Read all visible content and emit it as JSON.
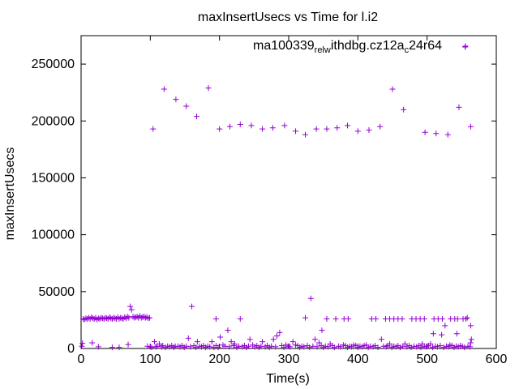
{
  "chart_data": {
    "type": "scatter",
    "title": "maxInsertUsecs vs Time for l.i2",
    "xlabel": "Time(s)",
    "ylabel": "maxInsertUsecs",
    "xlim": [
      0,
      600
    ],
    "ylim": [
      0,
      275000
    ],
    "xticks": [
      0,
      100,
      200,
      300,
      400,
      500,
      600
    ],
    "yticks": [
      0,
      50000,
      100000,
      150000,
      200000,
      250000
    ],
    "xtick_labels": [
      "0",
      "100",
      "200",
      "300",
      "400",
      "500",
      "600"
    ],
    "ytick_labels": [
      "0",
      "50000",
      "100000",
      "150000",
      "200000",
      "250000"
    ],
    "grid": false,
    "legend_position": "top-right",
    "marker": "plus",
    "series": [
      {
        "name": "ma100339",
        "name_parts": [
          {
            "text": "ma100339",
            "script": "normal"
          },
          {
            "text": "rel",
            "script": "sub"
          },
          {
            "text": "w",
            "script": "sub"
          },
          {
            "text": "ithdbg.cz12a",
            "script": "normal"
          },
          {
            "text": "c",
            "script": "sub"
          },
          {
            "text": "24r64",
            "script": "normal"
          }
        ],
        "color": "#9400d3",
        "points": [
          [
            1,
            2000
          ],
          [
            2,
            4500
          ],
          [
            3,
            26000
          ],
          [
            5,
            25500
          ],
          [
            7,
            26500
          ],
          [
            9,
            26000
          ],
          [
            11,
            27000
          ],
          [
            13,
            26000
          ],
          [
            15,
            27500
          ],
          [
            17,
            26500
          ],
          [
            19,
            26000
          ],
          [
            21,
            27000
          ],
          [
            23,
            25500
          ],
          [
            25,
            26500
          ],
          [
            27,
            26000
          ],
          [
            29,
            27000
          ],
          [
            31,
            26500
          ],
          [
            33,
            26000
          ],
          [
            35,
            27000
          ],
          [
            37,
            26500
          ],
          [
            39,
            26000
          ],
          [
            41,
            27500
          ],
          [
            43,
            26500
          ],
          [
            45,
            26000
          ],
          [
            47,
            27000
          ],
          [
            49,
            26500
          ],
          [
            51,
            26000
          ],
          [
            53,
            27500
          ],
          [
            55,
            26000
          ],
          [
            57,
            27000
          ],
          [
            59,
            26500
          ],
          [
            61,
            26000
          ],
          [
            63,
            27500
          ],
          [
            65,
            26500
          ],
          [
            67,
            28000
          ],
          [
            69,
            27000
          ],
          [
            71,
            37000
          ],
          [
            73,
            34000
          ],
          [
            75,
            28000
          ],
          [
            77,
            27000
          ],
          [
            79,
            27500
          ],
          [
            81,
            28000
          ],
          [
            83,
            27000
          ],
          [
            85,
            28500
          ],
          [
            87,
            27000
          ],
          [
            89,
            27500
          ],
          [
            91,
            28000
          ],
          [
            93,
            27000
          ],
          [
            95,
            27500
          ],
          [
            97,
            26500
          ],
          [
            99,
            27000
          ],
          [
            16,
            5000
          ],
          [
            25,
            1500
          ],
          [
            45,
            1000
          ],
          [
            55,
            1000
          ],
          [
            68,
            3500
          ],
          [
            104,
            193000
          ],
          [
            120,
            228000
          ],
          [
            137,
            219000
          ],
          [
            152,
            213000
          ],
          [
            167,
            204000
          ],
          [
            184,
            229000
          ],
          [
            200,
            193000
          ],
          [
            215,
            195000
          ],
          [
            230,
            197000
          ],
          [
            246,
            196000
          ],
          [
            262,
            193000
          ],
          [
            277,
            194000
          ],
          [
            294,
            196000
          ],
          [
            310,
            191000
          ],
          [
            324,
            188000
          ],
          [
            340,
            193000
          ],
          [
            355,
            193000
          ],
          [
            370,
            194000
          ],
          [
            385,
            196000
          ],
          [
            400,
            191000
          ],
          [
            416,
            192000
          ],
          [
            432,
            195000
          ],
          [
            450,
            228000
          ],
          [
            466,
            210000
          ],
          [
            497,
            190000
          ],
          [
            513,
            189000
          ],
          [
            530,
            188000
          ],
          [
            546,
            212000
          ],
          [
            555,
            265000
          ],
          [
            563,
            195000
          ],
          [
            195,
            26000
          ],
          [
            230,
            26000
          ],
          [
            324,
            27000
          ],
          [
            332,
            44000
          ],
          [
            348,
            16000
          ],
          [
            355,
            26000
          ],
          [
            368,
            26000
          ],
          [
            380,
            26000
          ],
          [
            386,
            26000
          ],
          [
            420,
            26000
          ],
          [
            426,
            26000
          ],
          [
            440,
            26000
          ],
          [
            446,
            26000
          ],
          [
            452,
            26000
          ],
          [
            458,
            26000
          ],
          [
            464,
            26000
          ],
          [
            478,
            26000
          ],
          [
            484,
            26000
          ],
          [
            490,
            26000
          ],
          [
            496,
            26000
          ],
          [
            510,
            26000
          ],
          [
            516,
            26000
          ],
          [
            522,
            26000
          ],
          [
            526,
            20000
          ],
          [
            534,
            26000
          ],
          [
            540,
            26000
          ],
          [
            544,
            26000
          ],
          [
            552,
            26000
          ],
          [
            556,
            26000
          ],
          [
            558,
            27000
          ],
          [
            521,
            12000
          ],
          [
            543,
            13000
          ],
          [
            563,
            20000
          ],
          [
            564,
            8000
          ],
          [
            563,
            5000
          ],
          [
            106,
            6000
          ],
          [
            113,
            4000
          ],
          [
            140,
            2000
          ],
          [
            155,
            9000
          ],
          [
            160,
            37000
          ],
          [
            168,
            6000
          ],
          [
            189,
            6000
          ],
          [
            201,
            10000
          ],
          [
            205,
            3000
          ],
          [
            212,
            16000
          ],
          [
            217,
            6000
          ],
          [
            222,
            4000
          ],
          [
            244,
            8000
          ],
          [
            248,
            3000
          ],
          [
            262,
            6000
          ],
          [
            278,
            8000
          ],
          [
            283,
            11000
          ],
          [
            287,
            14000
          ],
          [
            296,
            3000
          ],
          [
            306,
            6000
          ],
          [
            310,
            3000
          ],
          [
            338,
            8000
          ],
          [
            344,
            5000
          ],
          [
            360,
            4000
          ],
          [
            379,
            3000
          ],
          [
            394,
            3000
          ],
          [
            412,
            3000
          ],
          [
            434,
            8000
          ],
          [
            446,
            4000
          ],
          [
            468,
            4000
          ],
          [
            493,
            4000
          ],
          [
            505,
            4000
          ],
          [
            509,
            13000
          ],
          [
            533,
            3000
          ],
          [
            551,
            2000
          ],
          [
            96,
            2000
          ],
          [
            100,
            1500
          ],
          [
            102,
            1000
          ],
          [
            108,
            1500
          ],
          [
            110,
            2000
          ],
          [
            116,
            1500
          ],
          [
            118,
            2500
          ],
          [
            122,
            1000
          ],
          [
            125,
            2000
          ],
          [
            128,
            1500
          ],
          [
            131,
            2500
          ],
          [
            134,
            1000
          ],
          [
            136,
            2000
          ],
          [
            143,
            1500
          ],
          [
            146,
            2500
          ],
          [
            149,
            1000
          ],
          [
            152,
            2000
          ],
          [
            158,
            1500
          ],
          [
            163,
            2500
          ],
          [
            166,
            1000
          ],
          [
            171,
            2000
          ],
          [
            174,
            1500
          ],
          [
            177,
            2500
          ],
          [
            180,
            1000
          ],
          [
            183,
            2000
          ],
          [
            186,
            1500
          ],
          [
            192,
            1000
          ],
          [
            195,
            2500
          ],
          [
            198,
            1000
          ],
          [
            208,
            2000
          ],
          [
            214,
            1500
          ],
          [
            220,
            2500
          ],
          [
            225,
            1000
          ],
          [
            228,
            2000
          ],
          [
            233,
            1500
          ],
          [
            236,
            2500
          ],
          [
            239,
            1000
          ],
          [
            242,
            2000
          ],
          [
            251,
            1500
          ],
          [
            254,
            2500
          ],
          [
            257,
            1000
          ],
          [
            260,
            2000
          ],
          [
            266,
            1500
          ],
          [
            269,
            2500
          ],
          [
            272,
            1000
          ],
          [
            275,
            2000
          ],
          [
            281,
            1500
          ],
          [
            290,
            2500
          ],
          [
            293,
            1000
          ],
          [
            299,
            2000
          ],
          [
            302,
            1500
          ],
          [
            313,
            2500
          ],
          [
            316,
            1000
          ],
          [
            319,
            2000
          ],
          [
            322,
            1500
          ],
          [
            327,
            2500
          ],
          [
            330,
            1000
          ],
          [
            335,
            2000
          ],
          [
            341,
            1500
          ],
          [
            347,
            2500
          ],
          [
            350,
            1000
          ],
          [
            353,
            2000
          ],
          [
            357,
            1500
          ],
          [
            363,
            2500
          ],
          [
            366,
            1000
          ],
          [
            372,
            2000
          ],
          [
            375,
            1500
          ],
          [
            382,
            2500
          ],
          [
            385,
            1000
          ],
          [
            388,
            2000
          ],
          [
            391,
            1500
          ],
          [
            397,
            2500
          ],
          [
            400,
            1000
          ],
          [
            403,
            2000
          ],
          [
            406,
            1500
          ],
          [
            409,
            2500
          ],
          [
            415,
            1000
          ],
          [
            418,
            2000
          ],
          [
            422,
            1500
          ],
          [
            425,
            2500
          ],
          [
            429,
            1000
          ],
          [
            437,
            2000
          ],
          [
            441,
            1500
          ],
          [
            443,
            2500
          ],
          [
            449,
            1000
          ],
          [
            452,
            2000
          ],
          [
            455,
            1500
          ],
          [
            458,
            2500
          ],
          [
            461,
            1000
          ],
          [
            465,
            2000
          ],
          [
            471,
            1500
          ],
          [
            474,
            2500
          ],
          [
            477,
            1000
          ],
          [
            481,
            2000
          ],
          [
            485,
            1500
          ],
          [
            488,
            2500
          ],
          [
            491,
            1000
          ],
          [
            496,
            2000
          ],
          [
            499,
            1500
          ],
          [
            502,
            2500
          ],
          [
            508,
            1000
          ],
          [
            512,
            2000
          ],
          [
            515,
            1500
          ],
          [
            519,
            2500
          ],
          [
            524,
            1000
          ],
          [
            528,
            2000
          ],
          [
            531,
            1500
          ],
          [
            536,
            2500
          ],
          [
            539,
            1000
          ],
          [
            542,
            2000
          ],
          [
            545,
            1500
          ],
          [
            548,
            2500
          ],
          [
            554,
            1000
          ],
          [
            559,
            2000
          ],
          [
            562,
            1500
          ]
        ]
      }
    ]
  }
}
